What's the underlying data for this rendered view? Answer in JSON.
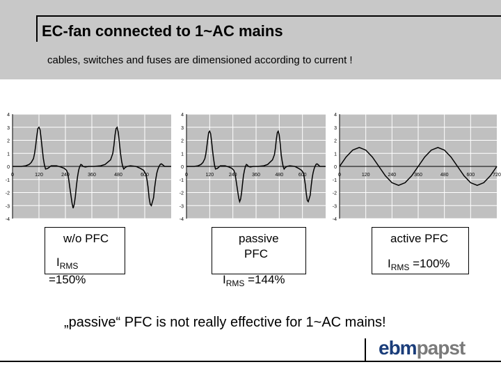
{
  "slide": {
    "title": "EC-fan connected to 1~AC mains",
    "subtitle": "cables, switches and fuses are dimensioned according to current !",
    "note": "„passive“ PFC is not really effective for 1~AC mains!",
    "logo_a": "ebm",
    "logo_b": "papst"
  },
  "labels": [
    {
      "line1": "w/o PFC",
      "sym": "I",
      "sub": "RMS",
      "value": "=150%"
    },
    {
      "line1": "passive",
      "line2": "PFC",
      "sym": "I",
      "sub": "RMS",
      "value": " =144%"
    },
    {
      "line1": "active PFC",
      "sym": "I",
      "sub": "RMS",
      "value": " =100%"
    }
  ],
  "colors": {
    "line": "#000000",
    "plot_bg": "#c0c0c0",
    "grid": "#ffffff",
    "header_bg": "#c8c8c8",
    "logo_a": "#1a3d7a",
    "logo_b": "#7a7a7a"
  },
  "chart_data": [
    {
      "type": "line",
      "xlim": [
        0,
        720
      ],
      "ylim": [
        -4,
        4
      ],
      "xticks": [
        0,
        120,
        240,
        360,
        480,
        600
      ],
      "yticks": [
        4,
        3,
        2,
        1,
        0,
        -1,
        -2,
        -3,
        -4
      ],
      "grid": true,
      "x": [
        0,
        40,
        60,
        75,
        85,
        95,
        100,
        105,
        110,
        115,
        120,
        125,
        130,
        135,
        140,
        145,
        150,
        160,
        175,
        200,
        220,
        235,
        245,
        250,
        255,
        260,
        270,
        275,
        280,
        285,
        290,
        295,
        300,
        305,
        310,
        315,
        320,
        330,
        345,
        370,
        400,
        420,
        445,
        455,
        460,
        465,
        470,
        475,
        480,
        485,
        490,
        495,
        500,
        505,
        510,
        520,
        535,
        560,
        580,
        595,
        605,
        610,
        615,
        620,
        625,
        630,
        640,
        645,
        650,
        655,
        660,
        665,
        670,
        675,
        680,
        690,
        700,
        720
      ],
      "y": [
        0.0,
        0.0,
        0.05,
        0.15,
        0.3,
        0.6,
        1.0,
        1.6,
        2.3,
        2.9,
        3.0,
        2.8,
        2.1,
        1.3,
        0.6,
        0.1,
        -0.2,
        -0.15,
        0.05,
        0.05,
        -0.05,
        -0.15,
        -0.3,
        -0.5,
        -1.0,
        -1.6,
        -2.8,
        -3.2,
        -2.9,
        -2.3,
        -1.5,
        -0.8,
        -0.3,
        0.0,
        0.15,
        0.1,
        0.0,
        -0.05,
        0.0,
        0.0,
        0.05,
        0.15,
        0.5,
        1.0,
        1.6,
        2.4,
        2.9,
        3.0,
        2.6,
        1.8,
        1.0,
        0.4,
        0.0,
        -0.2,
        -0.1,
        0.0,
        0.05,
        0.0,
        -0.15,
        -0.3,
        -0.6,
        -1.0,
        -1.6,
        -2.4,
        -2.9,
        -3.0,
        -2.4,
        -1.6,
        -1.0,
        -0.5,
        -0.2,
        0.0,
        0.15,
        0.2,
        0.15,
        0.0,
        0.0,
        0.0
      ]
    },
    {
      "type": "line",
      "xlim": [
        0,
        720
      ],
      "ylim": [
        -4,
        4
      ],
      "xticks": [
        0,
        120,
        240,
        360,
        480,
        600
      ],
      "yticks": [
        4,
        3,
        2,
        1,
        0,
        -1,
        -2,
        -3,
        -4
      ],
      "grid": true,
      "x": [
        0,
        40,
        60,
        75,
        85,
        95,
        100,
        105,
        110,
        115,
        120,
        125,
        130,
        135,
        140,
        145,
        150,
        160,
        175,
        200,
        220,
        235,
        245,
        250,
        255,
        260,
        270,
        275,
        280,
        285,
        290,
        295,
        300,
        305,
        310,
        315,
        320,
        330,
        345,
        370,
        400,
        420,
        445,
        455,
        460,
        465,
        470,
        475,
        480,
        485,
        490,
        495,
        500,
        505,
        510,
        520,
        535,
        560,
        580,
        595,
        605,
        610,
        615,
        620,
        625,
        630,
        640,
        645,
        650,
        655,
        660,
        665,
        670,
        675,
        680,
        690,
        700,
        720
      ],
      "y": [
        0.0,
        0.0,
        0.05,
        0.15,
        0.3,
        0.6,
        0.95,
        1.5,
        2.1,
        2.6,
        2.7,
        2.5,
        1.9,
        1.2,
        0.6,
        0.1,
        -0.2,
        -0.15,
        0.05,
        0.05,
        -0.05,
        -0.15,
        -0.3,
        -0.5,
        -0.9,
        -1.4,
        -2.4,
        -2.7,
        -2.5,
        -2.0,
        -1.3,
        -0.7,
        -0.3,
        0.0,
        0.15,
        0.1,
        0.0,
        -0.05,
        0.0,
        0.0,
        0.05,
        0.15,
        0.5,
        0.9,
        1.4,
        2.1,
        2.6,
        2.7,
        2.4,
        1.7,
        0.9,
        0.4,
        0.0,
        -0.2,
        -0.1,
        0.0,
        0.05,
        0.0,
        -0.15,
        -0.3,
        -0.5,
        -0.9,
        -1.4,
        -2.1,
        -2.6,
        -2.7,
        -2.2,
        -1.5,
        -0.9,
        -0.5,
        -0.2,
        0.0,
        0.15,
        0.2,
        0.15,
        0.0,
        0.0,
        0.0
      ]
    },
    {
      "type": "line",
      "xlim": [
        0,
        720
      ],
      "ylim": [
        -4,
        4
      ],
      "xticks": [
        0,
        120,
        240,
        360,
        480,
        600,
        720
      ],
      "yticks": [
        4,
        3,
        2,
        1,
        0,
        -1,
        -2,
        -3,
        -4
      ],
      "grid": true,
      "x": [
        0,
        30,
        60,
        90,
        120,
        150,
        180,
        210,
        240,
        270,
        300,
        330,
        360,
        390,
        420,
        450,
        480,
        510,
        540,
        570,
        600,
        630,
        660,
        690,
        720
      ],
      "y": [
        0.0,
        0.72,
        1.25,
        1.45,
        1.25,
        0.72,
        0.0,
        -0.72,
        -1.25,
        -1.45,
        -1.25,
        -0.72,
        0.0,
        0.72,
        1.25,
        1.45,
        1.25,
        0.72,
        0.0,
        -0.72,
        -1.25,
        -1.45,
        -1.25,
        -0.72,
        0.0
      ]
    }
  ]
}
